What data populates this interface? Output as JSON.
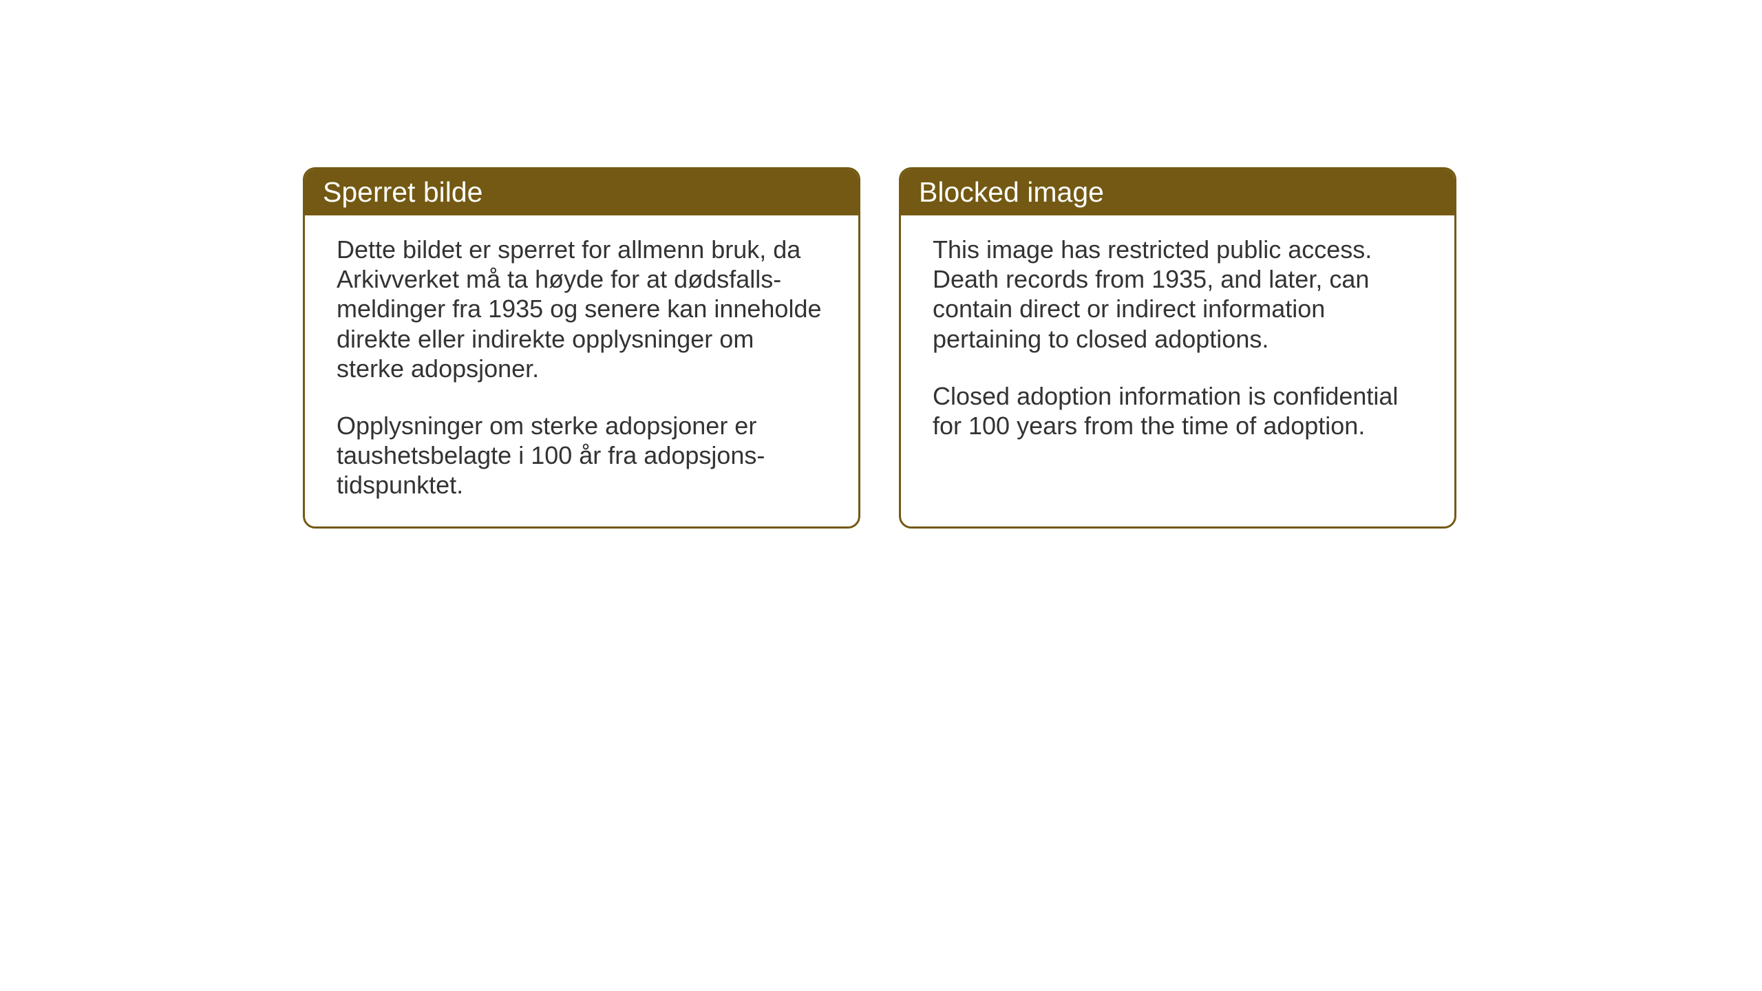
{
  "panels": {
    "norwegian": {
      "title": "Sperret bilde",
      "paragraph1": "Dette bildet er sperret for allmenn bruk, da Arkivverket må ta høyde for at dødsfalls-meldinger fra 1935 og senere kan inneholde direkte eller indirekte opplysninger om sterke adopsjoner.",
      "paragraph2": "Opplysninger om sterke adopsjoner er taushetsbelagte i 100 år fra adopsjons-tidspunktet."
    },
    "english": {
      "title": "Blocked image",
      "paragraph1": "This image has restricted public access. Death records from 1935, and later, can contain direct or indirect information pertaining to closed adoptions.",
      "paragraph2": "Closed adoption information is confidential for 100 years from the time of adoption."
    }
  },
  "style": {
    "header_bg_color": "#735913",
    "header_text_color": "#ffffff",
    "border_color": "#735913",
    "body_text_color": "#333333",
    "background_color": "#ffffff",
    "border_radius": 18,
    "title_fontsize": 41,
    "body_fontsize": 36
  }
}
